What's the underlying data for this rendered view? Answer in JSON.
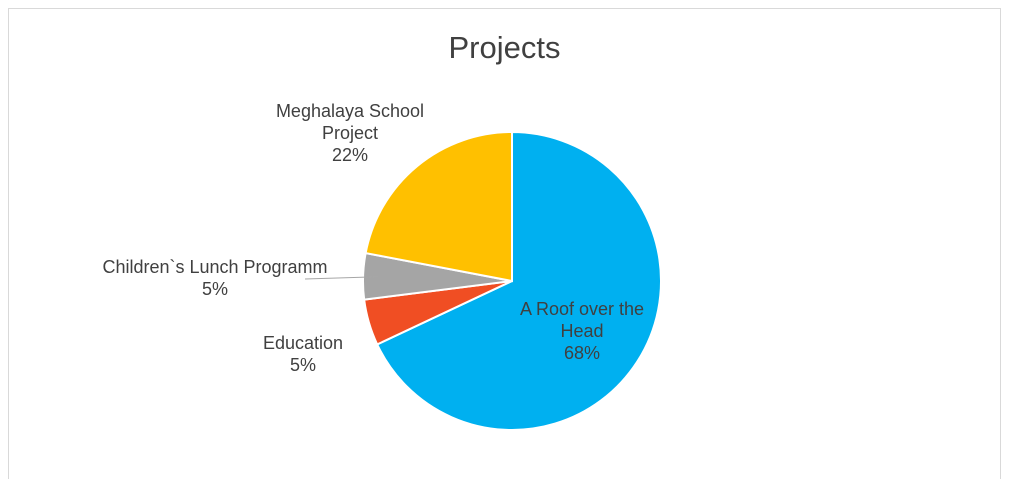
{
  "chart_data": {
    "type": "pie",
    "title": "Projects",
    "categories": [
      "A Roof over the Head",
      "Education",
      "Children`s Lunch Programm",
      "Meghalaya School Project"
    ],
    "values": [
      68,
      5,
      5,
      22
    ],
    "value_labels": [
      "68%",
      "5%",
      "5%",
      "22%"
    ],
    "colors": [
      "#00b0f0",
      "#f04e23",
      "#a5a5a5",
      "#ffc000"
    ]
  }
}
